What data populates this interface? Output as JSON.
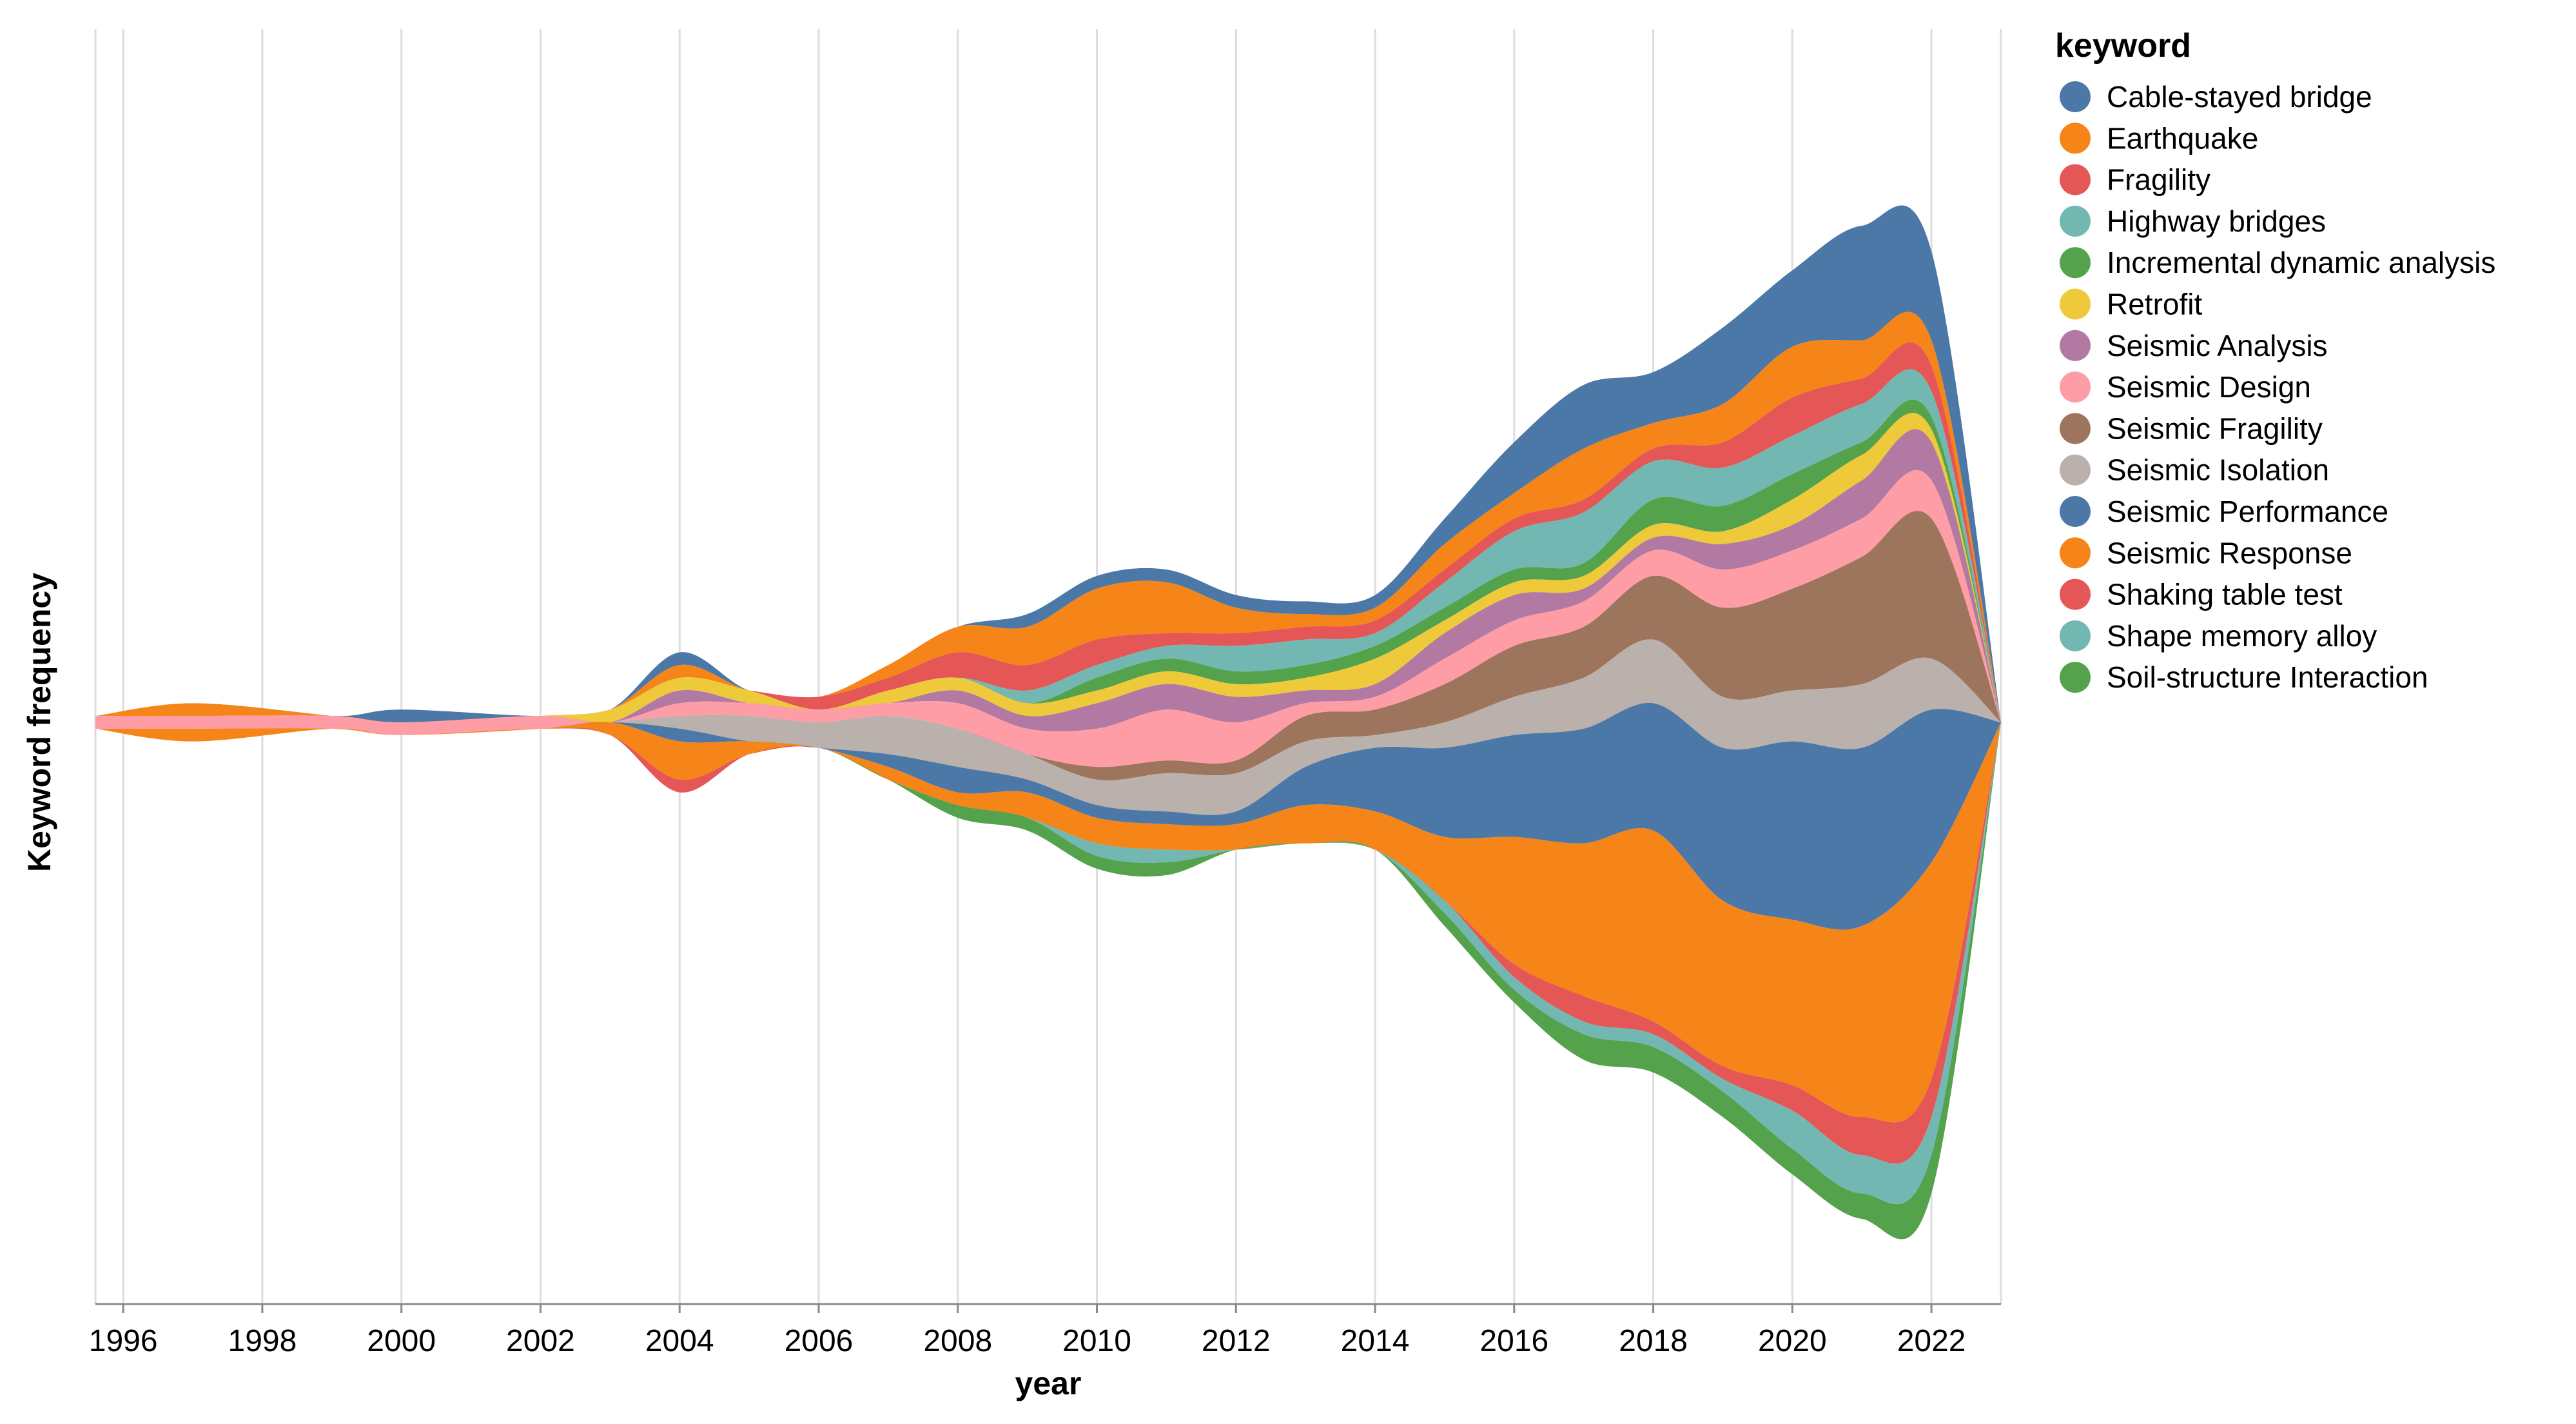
{
  "chart_data": {
    "type": "area",
    "subtype": "streamgraph",
    "xlabel": "year",
    "ylabel": "Keyword frequency",
    "legend_title": "keyword",
    "legend_position": "right",
    "grid": true,
    "xlim": [
      1995.6,
      2023
    ],
    "x_ticks": [
      1996,
      1998,
      2000,
      2002,
      2004,
      2006,
      2008,
      2010,
      2012,
      2014,
      2016,
      2018,
      2020,
      2022
    ],
    "x": [
      1995.6,
      1997,
      1999,
      2000,
      2002,
      2003,
      2004,
      2005,
      2006,
      2007,
      2008,
      2009,
      2010,
      2011,
      2012,
      2013,
      2014,
      2015,
      2016,
      2017,
      2018,
      2019,
      2020,
      2021,
      2022,
      2023
    ],
    "series": [
      {
        "name": "Cable-stayed bridge",
        "color": "#4c78a8",
        "values": [
          0,
          0,
          0,
          1,
          0,
          0,
          1,
          0,
          0,
          0,
          0,
          1,
          1,
          1,
          1,
          1,
          1,
          2,
          4,
          5,
          4,
          6,
          6,
          9,
          7,
          0
        ]
      },
      {
        "name": "Earthquake",
        "color": "#f58518",
        "values": [
          0,
          1,
          0,
          0,
          0,
          0,
          1,
          0,
          0,
          1,
          2,
          3,
          4,
          4,
          2,
          1,
          1,
          2,
          2,
          4,
          2,
          3,
          4,
          3,
          2,
          0
        ]
      },
      {
        "name": "Fragility",
        "color": "#e45756",
        "values": [
          0,
          0,
          0,
          0,
          0,
          0,
          0,
          0,
          1,
          1,
          2,
          2,
          2,
          1,
          1,
          1,
          1,
          1,
          1,
          1,
          1,
          2,
          3,
          2,
          2,
          0
        ]
      },
      {
        "name": "Highway bridges",
        "color": "#72b7b2",
        "values": [
          0,
          0,
          0,
          0,
          0,
          0,
          0,
          0,
          0,
          0,
          0,
          1,
          1,
          1,
          2,
          2,
          1,
          2,
          3,
          4,
          3,
          3,
          3,
          3,
          2,
          0
        ]
      },
      {
        "name": "Incremental dynamic analysis",
        "color": "#54a24b",
        "values": [
          0,
          0,
          0,
          0,
          0,
          0,
          0,
          0,
          0,
          0,
          0,
          0,
          1,
          1,
          1,
          1,
          1,
          1,
          1,
          1,
          2,
          2,
          2,
          1,
          1,
          0
        ]
      },
      {
        "name": "Retrofit",
        "color": "#eeca3b",
        "values": [
          0,
          0,
          0,
          0,
          0,
          1,
          1,
          1,
          0,
          1,
          1,
          1,
          1,
          1,
          1,
          1,
          2,
          1,
          1,
          1,
          1,
          1,
          2,
          2,
          1,
          0
        ]
      },
      {
        "name": "Seismic Analysis",
        "color": "#b279a2",
        "values": [
          0,
          0,
          0,
          0,
          0,
          0,
          1,
          0,
          0,
          0,
          1,
          1,
          2,
          2,
          2,
          1,
          1,
          2,
          2,
          1,
          1,
          2,
          2,
          3,
          3,
          0
        ]
      },
      {
        "name": "Seismic Design",
        "color": "#ff9da6",
        "values": [
          1,
          1,
          1,
          1,
          1,
          0,
          1,
          1,
          1,
          1,
          2,
          2,
          3,
          4,
          3,
          1,
          1,
          2,
          2,
          2,
          2,
          3,
          3,
          3,
          3,
          0
        ]
      },
      {
        "name": "Seismic Fragility",
        "color": "#9d755d",
        "values": [
          0,
          0,
          0,
          0,
          0,
          0,
          0,
          0,
          0,
          0,
          0,
          0,
          1,
          1,
          1,
          2,
          2,
          3,
          4,
          4,
          5,
          7,
          8,
          10,
          11,
          0
        ]
      },
      {
        "name": "Seismic Isolation",
        "color": "#bab0ac",
        "values": [
          0,
          0,
          0,
          0,
          0,
          0,
          1,
          2,
          2,
          3,
          3,
          2,
          2,
          3,
          3,
          2,
          1,
          2,
          3,
          4,
          5,
          4,
          4,
          5,
          4,
          0
        ]
      },
      {
        "name": "Seismic Performance",
        "color": "#4c78a8",
        "values": [
          0,
          0,
          0,
          0,
          0,
          0,
          1,
          0,
          0,
          1,
          2,
          1,
          1,
          1,
          1,
          3,
          5,
          7,
          8,
          9,
          10,
          12,
          14,
          14,
          12,
          0
        ]
      },
      {
        "name": "Seismic Response",
        "color": "#f58518",
        "values": [
          0,
          1,
          0,
          0,
          0,
          1,
          3,
          1,
          0,
          1,
          1,
          2,
          2,
          2,
          2,
          3,
          3,
          5,
          10,
          12,
          15,
          13,
          13,
          15,
          17,
          0
        ]
      },
      {
        "name": "Shaking table test",
        "color": "#e45756",
        "values": [
          0,
          0,
          0,
          0,
          0,
          0,
          1,
          0,
          0,
          0,
          0,
          0,
          0,
          0,
          0,
          0,
          0,
          0,
          1,
          2,
          1,
          1,
          2,
          3,
          3,
          0
        ]
      },
      {
        "name": "Shape memory alloy",
        "color": "#72b7b2",
        "values": [
          0,
          0,
          0,
          0,
          0,
          0,
          0,
          0,
          0,
          0,
          0,
          0,
          1,
          1,
          0,
          0,
          0,
          1,
          1,
          1,
          1,
          1,
          3,
          3,
          3,
          0
        ]
      },
      {
        "name": "Soil-structure Interaction",
        "color": "#54a24b",
        "values": [
          0,
          0,
          0,
          0,
          0,
          0,
          0,
          0,
          0,
          0,
          1,
          1,
          1,
          1,
          0,
          0,
          0,
          1,
          1,
          2,
          2,
          2,
          2,
          2,
          3,
          0
        ]
      }
    ]
  }
}
